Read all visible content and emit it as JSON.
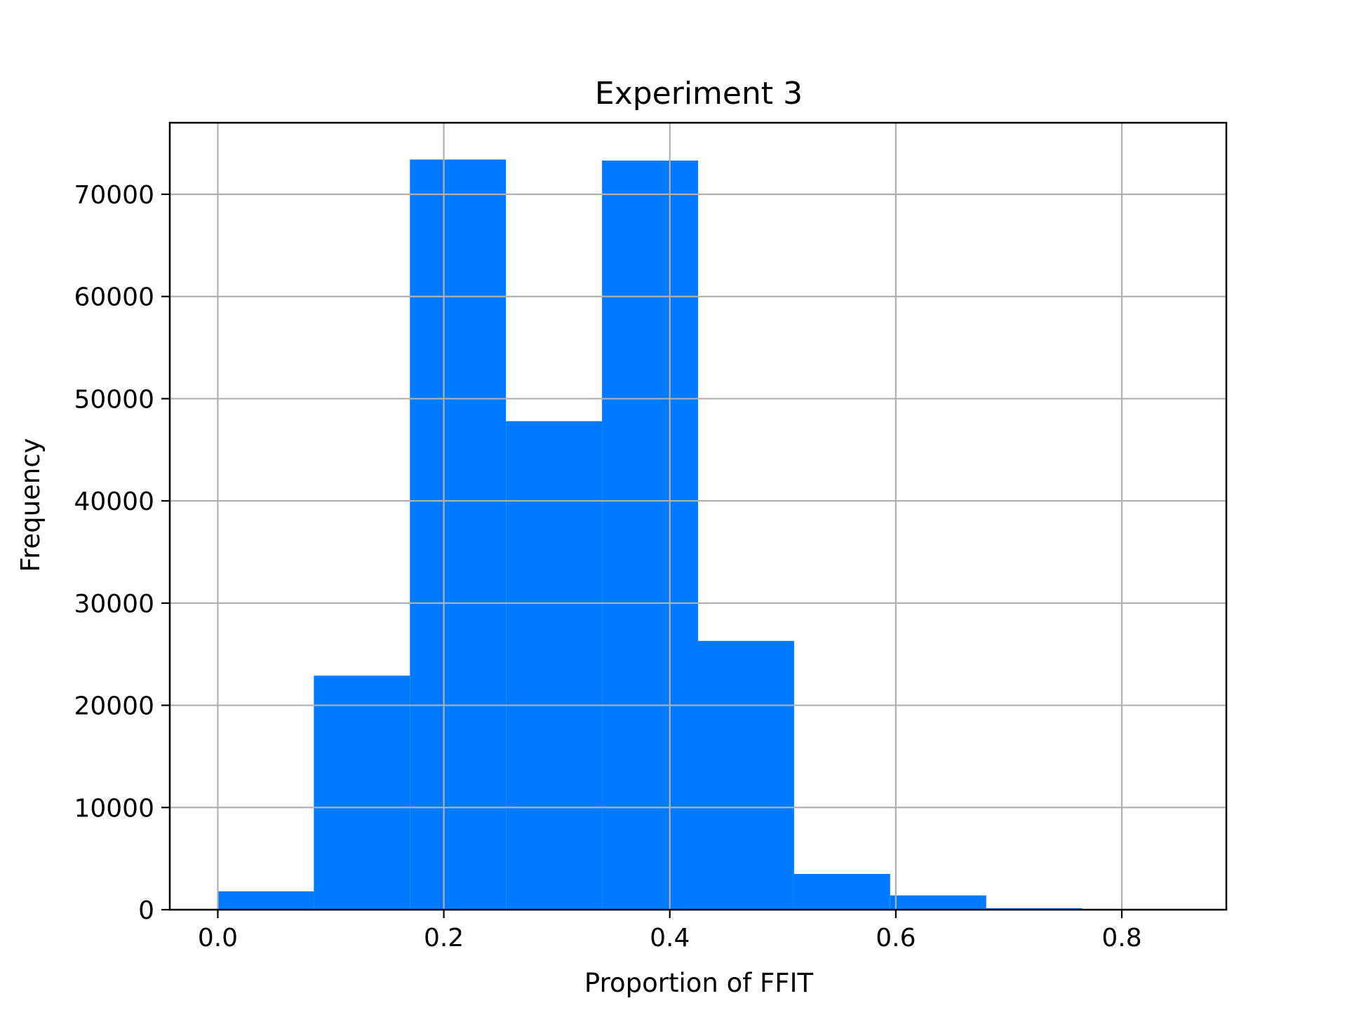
{
  "chart_data": {
    "type": "bar",
    "title": "Experiment 3",
    "xlabel": "Proportion of FFIT",
    "ylabel": "Frequency",
    "bar_color": "#007bff",
    "grid": true,
    "xlim": [
      -0.0425,
      0.8925
    ],
    "ylim": [
      0,
      77000
    ],
    "xticks": [
      0.0,
      0.2,
      0.4,
      0.6,
      0.8
    ],
    "xtick_labels": [
      "0.0",
      "0.2",
      "0.4",
      "0.6",
      "0.8"
    ],
    "yticks": [
      0,
      10000,
      20000,
      30000,
      40000,
      50000,
      60000,
      70000
    ],
    "ytick_labels": [
      "0",
      "10000",
      "20000",
      "30000",
      "40000",
      "50000",
      "60000",
      "70000"
    ],
    "bin_edges": [
      0.0,
      0.085,
      0.17,
      0.255,
      0.34,
      0.425,
      0.51,
      0.595,
      0.68,
      0.765,
      0.85
    ],
    "values": [
      1800,
      22900,
      73400,
      47800,
      73300,
      26300,
      3500,
      1400,
      150,
      20
    ]
  }
}
